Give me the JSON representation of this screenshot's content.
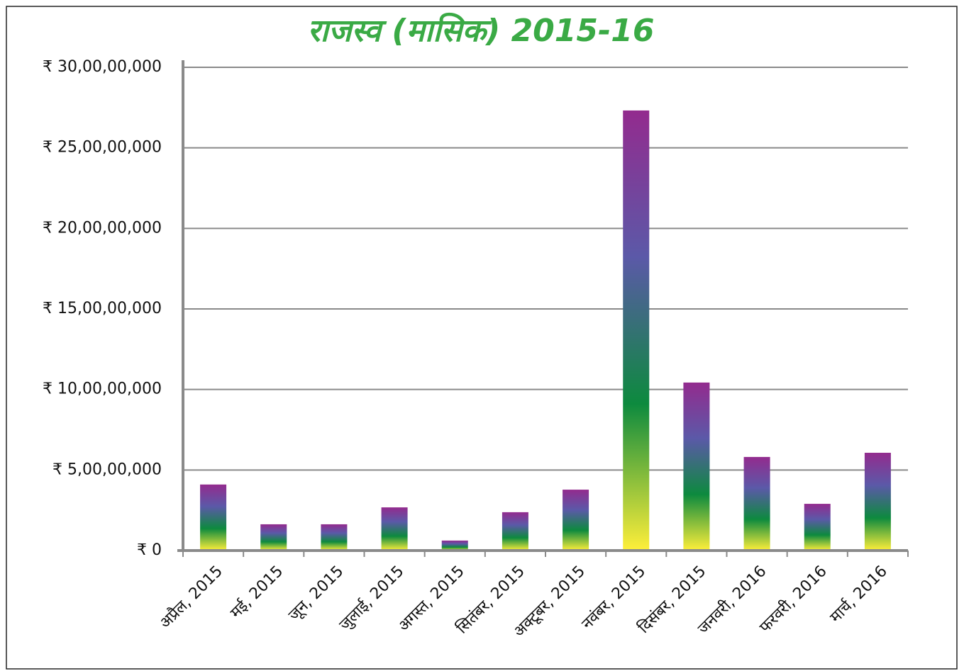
{
  "chart_data": {
    "type": "bar",
    "title": "राजस्व (मासिक) 2015-16",
    "categories": [
      "अप्रैल, 2015",
      "मई, 2015",
      "जून, 2015",
      "जुलाई, 2015",
      "अगस्त, 2015",
      "सितंबर, 2015",
      "अक्टूबर, 2015",
      "नवंबर, 2015",
      "दिसंबर, 2015",
      "जनवरी, 2016",
      "फरवरी, 2016",
      "मार्च, 2016"
    ],
    "values": [
      41000000,
      16300000,
      16300000,
      26800000,
      6200000,
      23800000,
      37800000,
      273200000,
      104300000,
      58100000,
      29000000,
      60700000
    ],
    "gradient": [
      "#ffef3a",
      "#0d8a3e",
      "#5b59a8",
      "#932b8e"
    ],
    "ylim": [
      0,
      300000000
    ],
    "yticks": [
      {
        "value": 0,
        "label": "₹ 0"
      },
      {
        "value": 50000000,
        "label": "₹ 5,00,00,000"
      },
      {
        "value": 100000000,
        "label": "₹ 10,00,00,000"
      },
      {
        "value": 150000000,
        "label": "₹ 15,00,00,000"
      },
      {
        "value": 200000000,
        "label": "₹ 20,00,00,000"
      },
      {
        "value": 250000000,
        "label": "₹ 25,00,00,000"
      },
      {
        "value": 300000000,
        "label": "₹ 30,00,00,000"
      }
    ],
    "grid": true
  }
}
